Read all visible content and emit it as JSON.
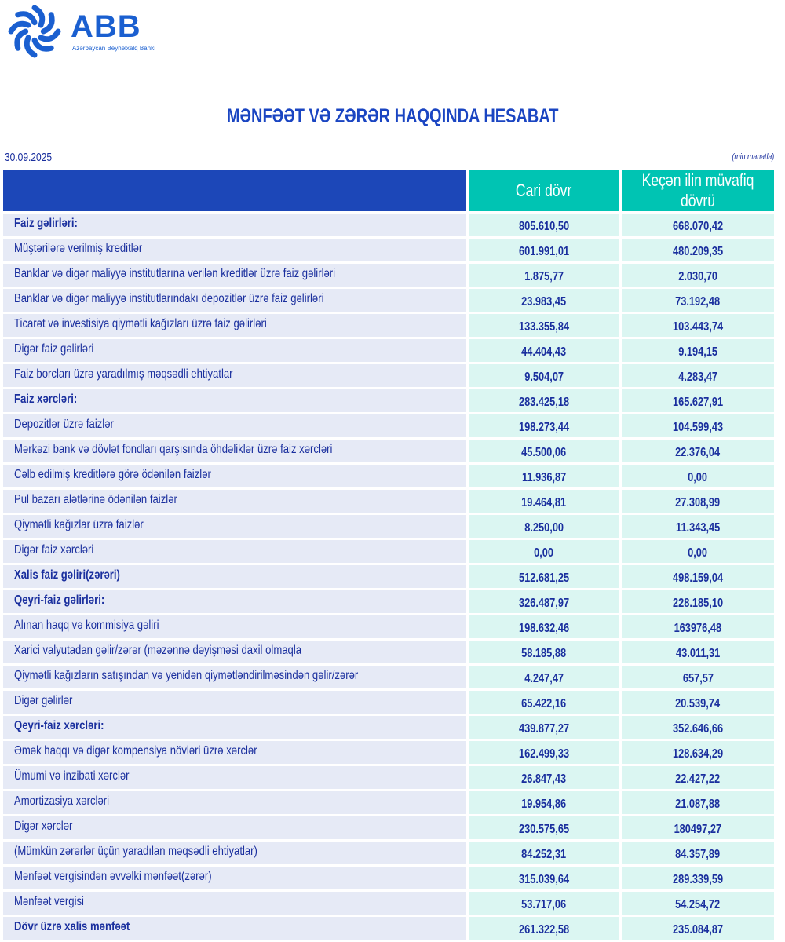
{
  "logo": {
    "name": "ABB",
    "subtitle": "Azərbaycan Beynəlxalq Bankı"
  },
  "title": "MƏNFƏƏT VƏ ZƏRƏR HAQQINDA HESABAT",
  "date": "30.09.2025",
  "unit": "(min manatla)",
  "colors": {
    "header_blue": "#1c47b8",
    "header_teal": "#00c4b3",
    "row_label_bg": "#e6eaf6",
    "row_value_bg": "#dbf6f2",
    "text": "#1a2f9e"
  },
  "columns": [
    "",
    "Cari dövr",
    "Keçən ilin müvafiq dövrü"
  ],
  "rows": [
    {
      "label": "Faiz gəlirləri:",
      "cur": "805.610,50",
      "prev": "668.070,42",
      "bold": true
    },
    {
      "label": "Müştərilərə verilmiş kreditlər",
      "cur": "601.991,01",
      "prev": "480.209,35"
    },
    {
      "label": "Banklar və digər maliyyə institutlarına verilən kreditlər üzrə faiz gəlirləri",
      "cur": "1.875,77",
      "prev": "2.030,70"
    },
    {
      "label": "Banklar və digər maliyyə institutlarındakı depozitlər üzrə faiz gəlirləri",
      "cur": "23.983,45",
      "prev": "73.192,48"
    },
    {
      "label": "Ticarət və investisiya qiymətli kağızları üzrə faiz gəlirləri",
      "cur": "133.355,84",
      "prev": "103.443,74"
    },
    {
      "label": "Digər faiz gəlirləri",
      "cur": "44.404,43",
      "prev": "9.194,15"
    },
    {
      "label": "Faiz borcları üzrə yaradılmış məqsədli ehtiyatlar",
      "cur": "9.504,07",
      "prev": "4.283,47"
    },
    {
      "label": "Faiz xərcləri:",
      "cur": "283.425,18",
      "prev": "165.627,91",
      "bold": true
    },
    {
      "label": "Depozitlər üzrə faizlər",
      "cur": "198.273,44",
      "prev": "104.599,43"
    },
    {
      "label": "Mərkəzi bank və dövlət fondları qarşısında öhdəliklər üzrə faiz xərcləri",
      "cur": "45.500,06",
      "prev": "22.376,04"
    },
    {
      "label": "Cəlb edilmiş kreditlərə görə ödənilən faizlər",
      "cur": "11.936,87",
      "prev": "0,00"
    },
    {
      "label": "Pul bazarı alətlərinə ödənilən faizlər",
      "cur": "19.464,81",
      "prev": "27.308,99"
    },
    {
      "label": "Qiymətli kağızlar üzrə faizlər",
      "cur": "8.250,00",
      "prev": "11.343,45"
    },
    {
      "label": "Digər faiz xərcləri",
      "cur": "0,00",
      "prev": "0,00"
    },
    {
      "label": "Xalis faiz gəliri(zərəri)",
      "cur": "512.681,25",
      "prev": "498.159,04",
      "bold": true
    },
    {
      "label": "Qeyri-faiz gəlirləri:",
      "cur": "326.487,97",
      "prev": "228.185,10",
      "bold": true
    },
    {
      "label": "Alınan haqq və kommisiya gəliri",
      "cur": "198.632,46",
      "prev": "163976,48"
    },
    {
      "label": "Xarici valyutadan gəlir/zərər (məzənnə dəyişməsi daxil olmaqla",
      "cur": "58.185,88",
      "prev": "43.011,31"
    },
    {
      "label": "Qiymətli kağızların satışından və yenidən qiymətləndirilməsindən gəlir/zərər",
      "cur": "4.247,47",
      "prev": "657,57"
    },
    {
      "label": "Digər gəlirlər",
      "cur": "65.422,16",
      "prev": "20.539,74"
    },
    {
      "label": "Qeyri-faiz xərcləri:",
      "cur": "439.877,27",
      "prev": "352.646,66",
      "bold": true
    },
    {
      "label": "Əmək haqqı və digər kompensiya növləri üzrə xərclər",
      "cur": "162.499,33",
      "prev": "128.634,29"
    },
    {
      "label": "Ümumi və inzibati xərclər",
      "cur": "26.847,43",
      "prev": "22.427,22"
    },
    {
      "label": "Amortizasiya xərcləri",
      "cur": "19.954,86",
      "prev": "21.087,88"
    },
    {
      "label": "Digər xərclər",
      "cur": "230.575,65",
      "prev": "180497,27"
    },
    {
      "label": "(Mümkün zərərlər üçün yaradılan məqsədli ehtiyatlar)",
      "cur": "84.252,31",
      "prev": "84.357,89"
    },
    {
      "label": "Mənfəət vergisindən əvvəlki mənfəət(zərər)",
      "cur": "315.039,64",
      "prev": "289.339,59"
    },
    {
      "label": "Mənfəət vergisi",
      "cur": "53.717,06",
      "prev": "54.254,72"
    },
    {
      "label": "Dövr üzrə xalis mənfəət",
      "cur": "261.322,58",
      "prev": "235.084,87",
      "bold": true
    }
  ]
}
